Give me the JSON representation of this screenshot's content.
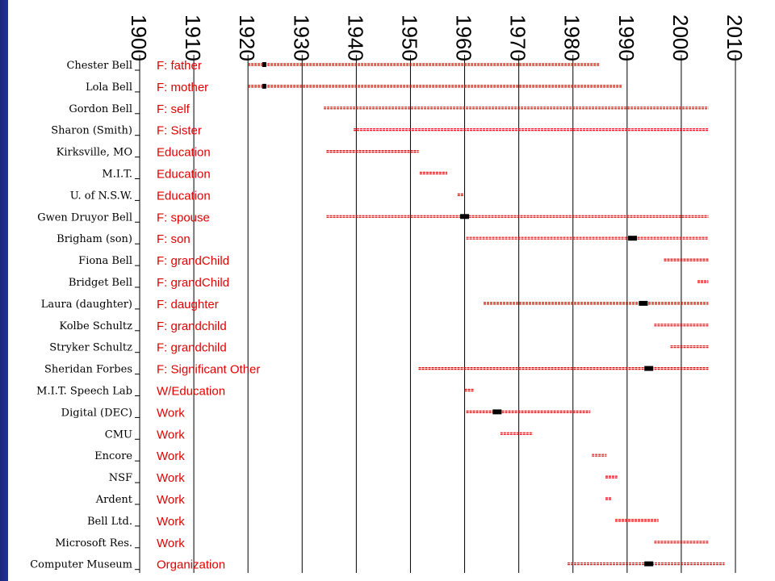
{
  "chart_data": {
    "type": "timeline",
    "x_ticks": [
      1900,
      1910,
      1920,
      1930,
      1940,
      1950,
      1960,
      1970,
      1980,
      1990,
      2000,
      2010
    ],
    "xlim": [
      1900,
      2010
    ],
    "grid": true,
    "line_color": "#e00000",
    "marker_color": "#000000",
    "rows": [
      {
        "label": "Chester Bell",
        "category": "F: father",
        "start": 1920,
        "end": 1985,
        "marker": 1923
      },
      {
        "label": "Lola Bell",
        "category": "F: mother",
        "start": 1920,
        "end": 1989,
        "marker": 1923
      },
      {
        "label": "Gordon Bell",
        "category": "F: self",
        "start": 1934,
        "end": 2005,
        "marker": null
      },
      {
        "label": "Sharon (Smith)",
        "category": "F: Sister",
        "start": 1939.5,
        "end": 2005,
        "marker": null
      },
      {
        "label": "Kirksville, MO",
        "category": "Education",
        "start": 1934.5,
        "end": 1951.5,
        "marker": null
      },
      {
        "label": "M.I.T.",
        "category": "Education",
        "start": 1951.7,
        "end": 1956.8,
        "marker": null
      },
      {
        "label": "U. of N.S.W.",
        "category": "Education",
        "start": 1958.7,
        "end": 1959.8,
        "marker": null
      },
      {
        "label": "Gwen Druyor Bell",
        "category": "F: spouse",
        "start": 1934.5,
        "end": 2005,
        "marker": 1960
      },
      {
        "label": "Brigham (son)",
        "category": "F: son",
        "start": 1960.3,
        "end": 2005,
        "marker": 1991
      },
      {
        "label": "Fiona Bell",
        "category": "F: grandChild",
        "start": 1996.8,
        "end": 2005,
        "marker": null
      },
      {
        "label": "Bridget Bell",
        "category": "F: grandChild",
        "start": 2003,
        "end": 2005,
        "marker": null
      },
      {
        "label": "Laura (daughter)",
        "category": "F: daughter",
        "start": 1963.5,
        "end": 2005,
        "marker": 1993
      },
      {
        "label": "Kolbe Schultz",
        "category": "F: grandchild",
        "start": 1995,
        "end": 2005,
        "marker": null
      },
      {
        "label": "Stryker Schultz",
        "category": "F: grandchild",
        "start": 1998,
        "end": 2005,
        "marker": null
      },
      {
        "label": "Sheridan Forbes",
        "category": "F: Significant Other",
        "start": 1951.5,
        "end": 2005,
        "marker": 1994
      },
      {
        "label": "M.I.T. Speech Lab",
        "category": "W/Education",
        "start": 1960,
        "end": 1961.7,
        "marker": null
      },
      {
        "label": "Digital (DEC)",
        "category": "Work",
        "start": 1960.3,
        "end": 1983.2,
        "marker": 1966
      },
      {
        "label": "CMU",
        "category": "Work",
        "start": 1966.6,
        "end": 1972.6,
        "marker": null
      },
      {
        "label": "Encore",
        "category": "Work",
        "start": 1983.5,
        "end": 1986.2,
        "marker": null
      },
      {
        "label": "NSF",
        "category": "Work",
        "start": 1986,
        "end": 1988.2,
        "marker": null
      },
      {
        "label": "Ardent",
        "category": "Work",
        "start": 1986,
        "end": 1987.2,
        "marker": null
      },
      {
        "label": "Bell Ltd.",
        "category": "Work",
        "start": 1987.8,
        "end": 1995.8,
        "marker": null
      },
      {
        "label": "Microsoft Res.",
        "category": "Work",
        "start": 1995,
        "end": 2005,
        "marker": null
      },
      {
        "label": "Computer Museum",
        "category": "Organization",
        "start": 1979,
        "end": 2008,
        "marker": 1994
      }
    ]
  }
}
